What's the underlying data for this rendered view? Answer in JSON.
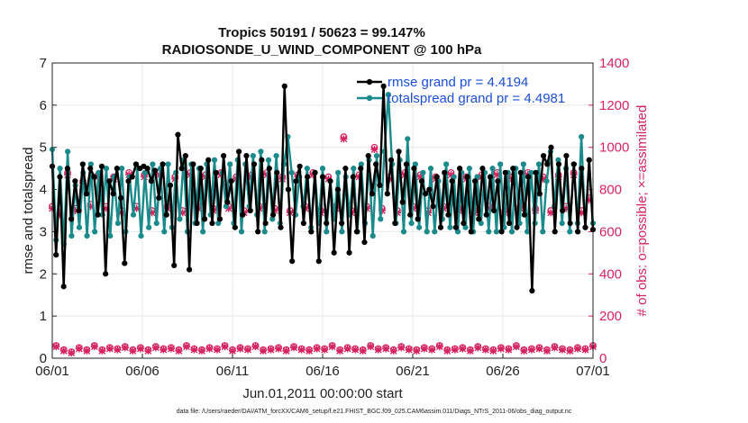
{
  "chart_data": {
    "type": "line",
    "title_line1": "Tropics 50191 / 50623 = 99.147%",
    "title_line2": "RADIOSONDE_U_WIND_COMPONENT @ 100 hPa",
    "xlabel": "Jun.01,2011 00:00:00 start",
    "ylabel_left": "rmse and totalspread",
    "ylabel_right": "# of obs: o=possible; ×=assimilated",
    "footnote": "data file: /Users/raeder/DAI/ATM_forcXX/CAM6_setup/f.e21.FHIST_BGC.f09_025.CAM6assim.011/Diags_NTrS_2011-06/obs_diag_output.nc",
    "xlim": [
      0,
      30
    ],
    "ylim_left": [
      0,
      7
    ],
    "ylim_right": [
      0,
      1400
    ],
    "x_ticks": [
      0,
      5,
      10,
      15,
      20,
      25,
      30
    ],
    "x_tick_labels": [
      "06/01",
      "06/06",
      "06/11",
      "06/16",
      "06/21",
      "06/26",
      "07/01"
    ],
    "y_ticks_left": [
      0,
      1,
      2,
      3,
      4,
      5,
      6,
      7
    ],
    "y_ticks_right": [
      0,
      200,
      400,
      600,
      800,
      1000,
      1200,
      1400
    ],
    "grid": true,
    "legend_position": "top-right",
    "colors": {
      "rmse": "#000000",
      "spread": "#1a8a8a",
      "obs": "#d6245f",
      "legend_text": "#1f4fd6"
    },
    "series": [
      {
        "name": "rmse grand pr = 4.4194",
        "axis": "left",
        "values": [
          4.55,
          2.45,
          4.3,
          1.7,
          4.5,
          3.3,
          4.2,
          3.5,
          4.6,
          3.9,
          4.5,
          4.3,
          3.4,
          4.55,
          2.0,
          4.2,
          3.9,
          4.5,
          3.8,
          2.25,
          4.2,
          4.3,
          4.6,
          4.5,
          4.55,
          4.5,
          4.2,
          4.45,
          3.8,
          4.6,
          3.4,
          4.1,
          2.2,
          5.3,
          4.5,
          4.8,
          2.1,
          4.6,
          3.2,
          4.5,
          3.3,
          4.7,
          3.2,
          4.4,
          3.3,
          4.8,
          3.7,
          4.2,
          3.1,
          4.9,
          3.4,
          4.8,
          3.5,
          4.6,
          3.0,
          4.7,
          3.2,
          4.5,
          3.4,
          4.4,
          3.1,
          6.45,
          4.0,
          2.3,
          4.2,
          4.55,
          3.2,
          4.3,
          3.0,
          4.4,
          2.3,
          4.3,
          3.2,
          4.2,
          2.5,
          4.0,
          3.2,
          4.5,
          2.5,
          4.3,
          3.0,
          4.5,
          2.75,
          4.8,
          3.9,
          4.6,
          4.1,
          6.45,
          3.9,
          4.7,
          3.2,
          4.9,
          3.7,
          4.6,
          3.4,
          4.5,
          3.3,
          4.2,
          3.9,
          4.0,
          3.6,
          4.3,
          3.1,
          4.4,
          3.4,
          4.2,
          3.1,
          4.5,
          3.2,
          4.3,
          3.0,
          4.2,
          3.3,
          4.5,
          3.4,
          4.3,
          3.5,
          4.2,
          3.0,
          4.4,
          3.2,
          4.5,
          3.1,
          4.4,
          3.4,
          4.3,
          1.6,
          4.4,
          3.9,
          4.8,
          4.6,
          5.0,
          3.0,
          4.6,
          3.5,
          4.8,
          3.2,
          4.6,
          3.0,
          4.5,
          3.1,
          4.7,
          3.05
        ]
      },
      {
        "name": "totalspread grand pr = 4.4981",
        "axis": "left",
        "values": [
          4.95,
          2.8,
          4.5,
          2.7,
          4.9,
          2.9,
          4.1,
          3.1,
          4.4,
          2.9,
          4.6,
          3.0,
          4.4,
          3.4,
          4.5,
          2.9,
          4.3,
          3.2,
          4.5,
          3.0,
          4.3,
          3.4,
          4.5,
          2.9,
          4.4,
          3.1,
          4.6,
          3.2,
          4.5,
          3.0,
          4.6,
          3.1,
          4.4,
          3.3,
          4.7,
          3.0,
          4.6,
          3.2,
          4.5,
          3.0,
          4.6,
          3.4,
          4.7,
          3.2,
          4.4,
          3.6,
          4.6,
          3.2,
          4.7,
          3.0,
          4.6,
          3.6,
          4.8,
          3.4,
          4.9,
          3.0,
          4.7,
          3.3,
          4.8,
          3.2,
          4.6,
          5.25,
          4.4,
          3.4,
          4.3,
          3.6,
          4.5,
          3.1,
          4.4,
          3.2,
          4.5,
          3.0,
          4.2,
          3.3,
          4.4,
          3.0,
          4.3,
          3.4,
          4.5,
          3.0,
          4.6,
          3.2,
          4.7,
          2.9,
          4.8,
          3.3,
          4.9,
          6.25,
          4.6,
          3.2,
          4.7,
          3.0,
          5.2,
          3.2,
          4.6,
          3.1,
          4.4,
          3.0,
          4.5,
          3.0,
          4.2,
          3.3,
          4.6,
          3.1,
          4.3,
          3.0,
          4.4,
          3.1,
          4.5,
          3.0,
          4.3,
          3.2,
          4.4,
          3.0,
          4.5,
          3.0,
          4.6,
          3.1,
          4.4,
          3.0,
          4.5,
          3.2,
          4.6,
          3.0,
          4.4,
          3.2,
          4.6,
          3.0,
          4.2,
          4.9,
          3.6,
          4.7,
          3.2,
          4.5,
          3.0,
          4.6,
          3.2,
          5.25,
          3.1,
          4.7,
          3.2
        ]
      }
    ],
    "obs_possible": {
      "axis": "right",
      "values": [
        720,
        60,
        690,
        40,
        880,
        30,
        710,
        50,
        840,
        40,
        730,
        60,
        870,
        40,
        720,
        50,
        860,
        45,
        700,
        55,
        880,
        40,
        720,
        50,
        870,
        40,
        700,
        55,
        880,
        45,
        720,
        50,
        860,
        40,
        700,
        60,
        880,
        45,
        720,
        40,
        870,
        50,
        710,
        45,
        880,
        60,
        720,
        40,
        860,
        50,
        700,
        45,
        870,
        60,
        720,
        40,
        880,
        45,
        710,
        50,
        860,
        40,
        700,
        55,
        870,
        45,
        720,
        40,
        880,
        50,
        700,
        45,
        860,
        60,
        720,
        40,
        1050,
        50,
        700,
        45,
        870,
        40,
        720,
        60,
        1000,
        45,
        710,
        50,
        860,
        40,
        700,
        55,
        880,
        45,
        720,
        40,
        870,
        50,
        700,
        45,
        860,
        60,
        720,
        40,
        880,
        45,
        710,
        50,
        860,
        40,
        700,
        55,
        870,
        45,
        720,
        40,
        880,
        50,
        700,
        45,
        860,
        60,
        720,
        40,
        880,
        45,
        710,
        50,
        860,
        40,
        700,
        55,
        870,
        45,
        720,
        40,
        880,
        50,
        700,
        45,
        760,
        60
      ]
    },
    "obs_assimilated": {
      "axis": "right",
      "values": [
        710,
        55,
        680,
        35,
        870,
        25,
        700,
        45,
        830,
        35,
        720,
        55,
        860,
        35,
        710,
        45,
        850,
        40,
        690,
        50,
        870,
        35,
        710,
        45,
        860,
        35,
        690,
        50,
        870,
        40,
        710,
        45,
        850,
        35,
        690,
        55,
        870,
        40,
        710,
        35,
        860,
        45,
        700,
        40,
        870,
        55,
        710,
        35,
        850,
        45,
        690,
        40,
        860,
        55,
        710,
        35,
        870,
        40,
        700,
        45,
        850,
        35,
        690,
        50,
        860,
        40,
        710,
        35,
        870,
        45,
        690,
        40,
        850,
        55,
        710,
        35,
        1040,
        45,
        690,
        40,
        860,
        35,
        710,
        55,
        990,
        40,
        700,
        45,
        850,
        35,
        690,
        50,
        870,
        40,
        710,
        35,
        860,
        45,
        690,
        40,
        850,
        55,
        710,
        35,
        870,
        40,
        700,
        45,
        850,
        35,
        690,
        50,
        860,
        40,
        710,
        35,
        870,
        45,
        690,
        40,
        850,
        55,
        710,
        35,
        870,
        40,
        700,
        45,
        850,
        35,
        690,
        50,
        860,
        40,
        710,
        35,
        870,
        45,
        690,
        40,
        750,
        55
      ]
    }
  }
}
